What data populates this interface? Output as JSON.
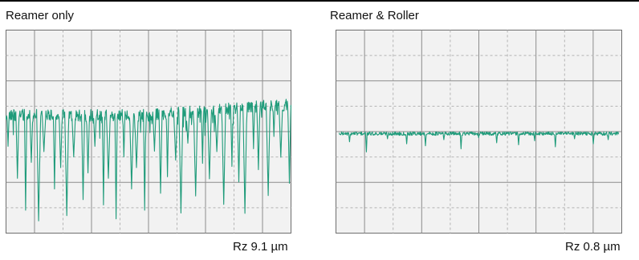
{
  "chart_data": [
    {
      "type": "line",
      "title": "Reamer only",
      "annotation": "Rz 9.1 µm",
      "grid": true,
      "ylim": [
        -1,
        1
      ],
      "reference_level": 0.22,
      "peak_level_first_half": 0.22,
      "peak_level_second_half": 0.33,
      "valley_depths": [
        0.3,
        0.6,
        0.9,
        0.45,
        1.0,
        0.35,
        0.7,
        0.5,
        0.95,
        0.4,
        0.8,
        0.55,
        0.3,
        0.85,
        0.6,
        0.98,
        0.4,
        0.7,
        0.5,
        0.9,
        0.35,
        0.75,
        0.6,
        0.45,
        0.95,
        0.3,
        0.8,
        0.5,
        0.65,
        0.4,
        0.9,
        0.55,
        0.7,
        1.0,
        0.4,
        0.6,
        0.85,
        0.3,
        0.5,
        0.75
      ],
      "series": [
        {
          "color": "#1f9b7a"
        }
      ]
    },
    {
      "type": "line",
      "title": "Reamer & Roller",
      "annotation": "Rz 0.8 µm",
      "grid": true,
      "ylim": [
        -1,
        1
      ],
      "reference_level": -0.02,
      "valley_depths": [
        0.08,
        0.18,
        0.05,
        0.1,
        0.12,
        0.06,
        0.15,
        0.04,
        0.09,
        0.11,
        0.07,
        0.13,
        0.05,
        0.1,
        0.06
      ],
      "series": [
        {
          "color": "#1f9b7a"
        }
      ]
    }
  ]
}
